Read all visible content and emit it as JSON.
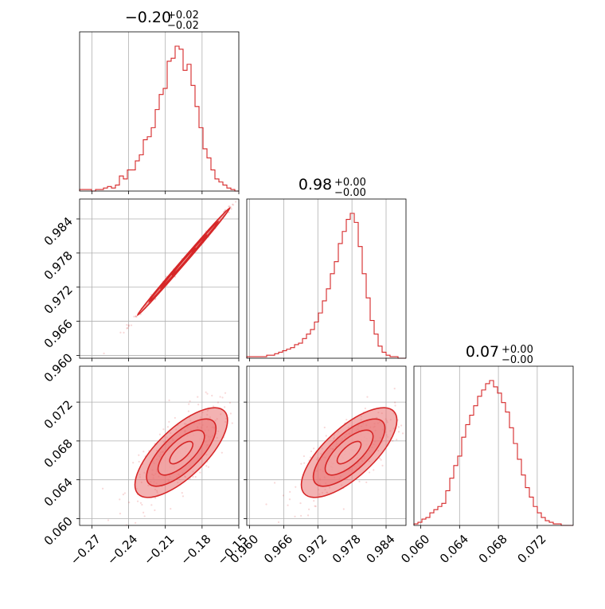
{
  "colors": {
    "accent": "#d62728",
    "fill_light": "#f4b6b6",
    "fill_mid": "#ea7373",
    "grid": "#b0b0b0"
  },
  "chart_data": {
    "type": "corner",
    "parameters": [
      {
        "title_value": "−0.20",
        "title_plus": "+0.02",
        "title_minus": "−0.02",
        "range": [
          -0.28,
          -0.15
        ],
        "ticks": [
          -0.27,
          -0.24,
          -0.21,
          -0.18,
          -0.15
        ],
        "tick_labels": [
          "−0.27",
          "−0.24",
          "−0.21",
          "−0.18",
          "−0.15"
        ]
      },
      {
        "title_value": "0.98",
        "title_plus": "+0.00",
        "title_minus": "−0.00",
        "range": [
          0.9595,
          0.9875
        ],
        "ticks": [
          0.96,
          0.966,
          0.972,
          0.978,
          0.984
        ],
        "tick_labels": [
          "0.960",
          "0.966",
          "0.972",
          "0.978",
          "0.984"
        ]
      },
      {
        "title_value": "0.07",
        "title_plus": "+0.00",
        "title_minus": "−0.00",
        "range": [
          0.0593,
          0.0757
        ],
        "ticks": [
          0.06,
          0.064,
          0.068,
          0.072
        ],
        "tick_labels": [
          "0.060",
          "0.064",
          "0.068",
          "0.072"
        ]
      }
    ],
    "histograms": [
      {
        "param": 0,
        "counts": [
          1,
          1,
          1,
          0,
          1,
          1,
          2,
          3,
          2,
          4,
          10,
          8,
          14,
          14,
          20,
          24,
          34,
          36,
          42,
          54,
          64,
          68,
          86,
          88,
          96,
          94,
          80,
          84,
          70,
          56,
          42,
          28,
          22,
          14,
          8,
          6,
          4,
          2,
          1,
          0
        ]
      },
      {
        "param": 1,
        "counts": [
          1,
          1,
          1,
          1,
          1,
          2,
          2,
          3,
          4,
          5,
          6,
          7,
          9,
          10,
          13,
          16,
          19,
          24,
          30,
          38,
          46,
          56,
          64,
          76,
          84,
          92,
          96,
          90,
          74,
          56,
          40,
          25,
          16,
          8,
          4,
          2,
          1,
          1,
          0,
          0
        ]
      },
      {
        "param": 2,
        "counts": [
          1,
          2,
          4,
          5,
          8,
          10,
          12,
          14,
          22,
          30,
          38,
          44,
          56,
          64,
          70,
          76,
          82,
          86,
          90,
          92,
          88,
          84,
          78,
          72,
          62,
          52,
          42,
          32,
          24,
          18,
          12,
          8,
          5,
          3,
          2,
          1,
          1,
          0,
          0,
          0
        ]
      }
    ],
    "pairs": [
      {
        "x_param": 0,
        "y_param": 1,
        "center": [
          -0.195,
          0.9765
        ],
        "rho": 0.998,
        "spread": [
          0.018,
          0.0045
        ]
      },
      {
        "x_param": 0,
        "y_param": 2,
        "center": [
          -0.197,
          0.0668
        ],
        "rho": 0.72,
        "spread": [
          0.018,
          0.0022
        ]
      },
      {
        "x_param": 1,
        "y_param": 2,
        "center": [
          0.9775,
          0.0668
        ],
        "rho": 0.72,
        "spread": [
          0.004,
          0.0022
        ]
      }
    ],
    "grid": true,
    "contour_levels": [
      0.5,
      1.0,
      1.5,
      2.0
    ]
  }
}
